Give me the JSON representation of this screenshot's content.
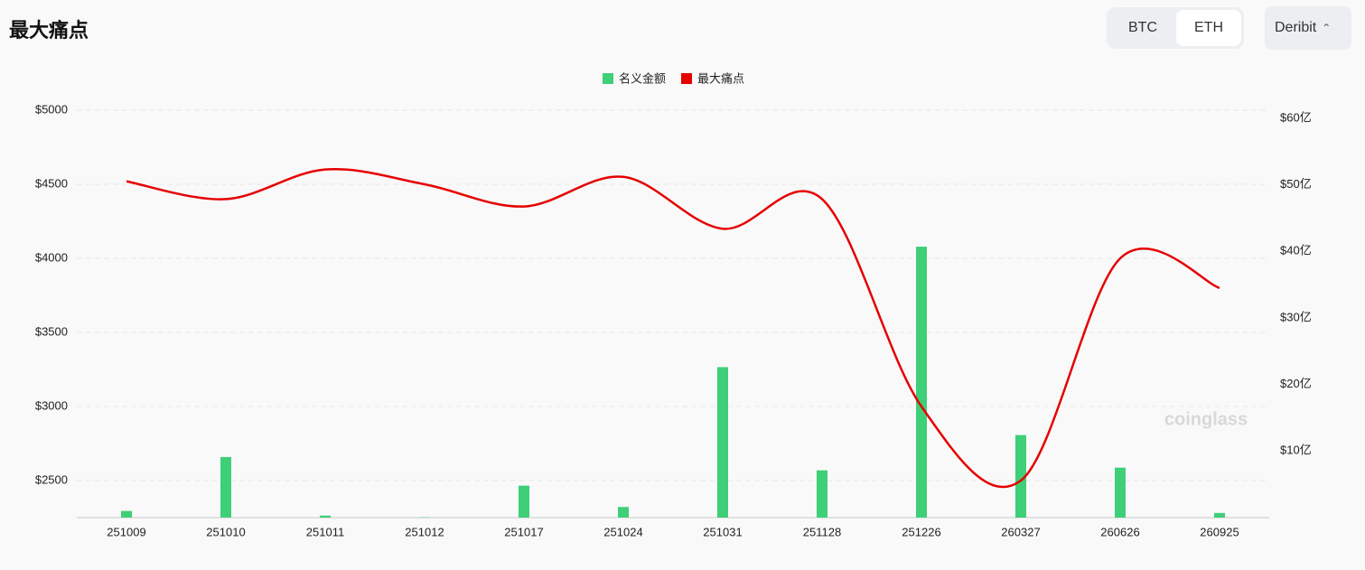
{
  "header": {
    "title": "最大痛点",
    "tabs": [
      "BTC",
      "ETH"
    ],
    "exchange": "Deribit"
  },
  "watermark": "coinglass",
  "chart_data": {
    "type": "combo",
    "categories": [
      "251009",
      "251010",
      "251011",
      "251012",
      "251017",
      "251024",
      "251031",
      "251128",
      "251226",
      "260327",
      "260626",
      "260925"
    ],
    "series": [
      {
        "name": "名义金额",
        "type": "bar",
        "axis": "y2",
        "color": "#3ecf78",
        "values": [
          1.0,
          9.1,
          0.3,
          0.05,
          4.8,
          1.6,
          22.6,
          7.1,
          40.7,
          12.4,
          7.5,
          0.7
        ]
      },
      {
        "name": "最大痛点",
        "type": "line",
        "axis": "y",
        "color": "#e60000",
        "values": [
          4520,
          4400,
          4600,
          4500,
          4350,
          4550,
          4200,
          4400,
          3000,
          2500,
          4000,
          3800
        ]
      }
    ],
    "ylim": [
      2250,
      5000
    ],
    "yticks": [
      {
        "value": 2500,
        "label": "$2500"
      },
      {
        "value": 3000,
        "label": "$3000"
      },
      {
        "value": 3500,
        "label": "$3500"
      },
      {
        "value": 4000,
        "label": "$4000"
      },
      {
        "value": 4500,
        "label": "$4500"
      },
      {
        "value": 5000,
        "label": "$5000"
      }
    ],
    "y2lim": [
      0,
      61.2
    ],
    "y2ticks": [
      {
        "value": 10,
        "label": "$10亿"
      },
      {
        "value": 20,
        "label": "$20亿"
      },
      {
        "value": 30,
        "label": "$30亿"
      },
      {
        "value": 40,
        "label": "$40亿"
      },
      {
        "value": 50,
        "label": "$50亿"
      },
      {
        "value": 60,
        "label": "$60亿"
      }
    ],
    "grid": true
  }
}
